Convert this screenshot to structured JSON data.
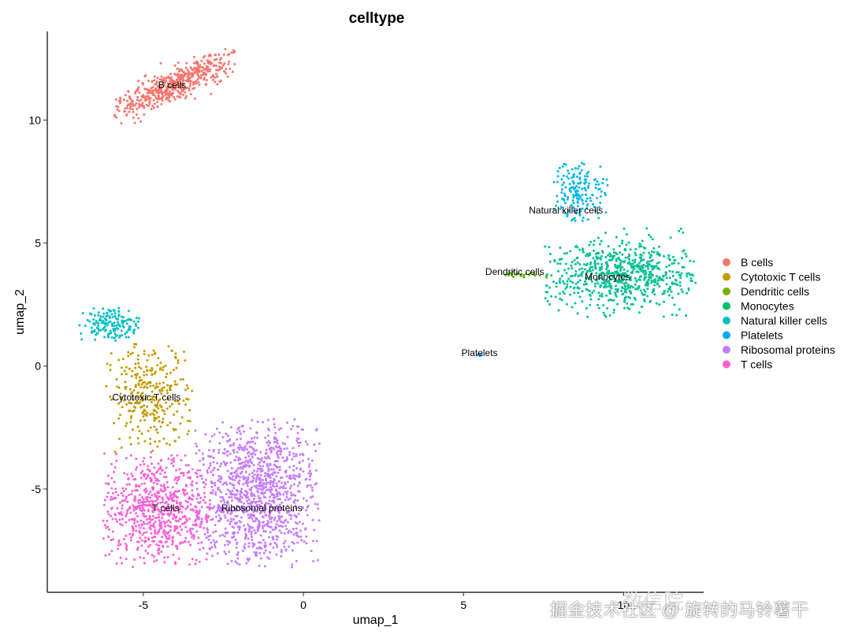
{
  "chart_data": {
    "type": "scatter",
    "title": "celltype",
    "xlabel": "umap_1",
    "ylabel": "umap_2",
    "xlim": [
      -8.0,
      12.5
    ],
    "ylim": [
      -9.2,
      13.6
    ],
    "x_ticks": [
      -5,
      0,
      5,
      10
    ],
    "y_ticks": [
      -5,
      0,
      5,
      10
    ],
    "x_tick_labels": [
      "-5",
      "0",
      "5",
      "10"
    ],
    "y_tick_labels": [
      "-5",
      "0",
      "5",
      "10"
    ],
    "grid": false,
    "legend_position": "right",
    "series": [
      {
        "name": "B cells",
        "color": "#F8766D",
        "label_x": -4.1,
        "label_y": 11.3,
        "point_count": 520,
        "centroid": [
          -4.1,
          11.4
        ],
        "extent": {
          "x": [
            -5.9,
            -2.1
          ],
          "y": [
            10.3,
            12.6
          ]
        }
      },
      {
        "name": "Cytotoxic T cells",
        "color": "#C49A00",
        "label_x": -4.9,
        "label_y": -1.4,
        "point_count": 300,
        "centroid": [
          -4.9,
          -1.6
        ],
        "extent": {
          "x": [
            -6.2,
            -3.4
          ],
          "y": [
            -3.6,
            1.0
          ]
        }
      },
      {
        "name": "Dendritic cells",
        "color": "#53B400",
        "label_x": 6.6,
        "label_y": 3.7,
        "point_count": 25,
        "centroid": [
          6.7,
          3.7
        ],
        "extent": {
          "x": [
            6.0,
            7.6
          ],
          "y": [
            3.5,
            3.9
          ]
        }
      },
      {
        "name": "Monocytes",
        "color": "#00C094",
        "label_x": 9.5,
        "label_y": 3.5,
        "point_count": 700,
        "centroid": [
          9.3,
          3.5
        ],
        "extent": {
          "x": [
            7.4,
            12.3
          ],
          "y": [
            2.1,
            5.4
          ]
        }
      },
      {
        "name": "Natural killer cells",
        "color": "#00B6EB",
        "legend_color": "#00B6EB",
        "label_x": 8.2,
        "label_y": 6.2,
        "point_count": 170,
        "centroid": [
          8.4,
          7.2
        ],
        "extent": {
          "x": [
            7.8,
            9.5
          ],
          "y": [
            5.9,
            8.4
          ]
        }
      },
      {
        "name": "Platelets",
        "color": "#06A4FF",
        "label_x": 5.5,
        "label_y": 0.4,
        "point_count": 4,
        "centroid": [
          5.5,
          0.45
        ],
        "extent": {
          "x": [
            5.4,
            5.6
          ],
          "y": [
            0.4,
            0.5
          ]
        }
      },
      {
        "name": "Ribosomal proteins",
        "color": "#C77CFF",
        "label_x": -1.3,
        "label_y": -5.9,
        "point_count": 1100,
        "centroid": [
          -1.2,
          -5.7
        ],
        "extent": {
          "x": [
            -3.5,
            0.5
          ],
          "y": [
            -8.2,
            -2.1
          ]
        }
      },
      {
        "name": "T cells",
        "color": "#FB61D7",
        "label_x": -4.3,
        "label_y": -5.9,
        "point_count": 700,
        "centroid": [
          -4.4,
          -5.9
        ],
        "extent": {
          "x": [
            -6.3,
            -2.8
          ],
          "y": [
            -8.2,
            -3.5
          ]
        }
      }
    ],
    "nk_cluster_left": {
      "name": "Natural killer cells",
      "color": "#00BFC4",
      "point_count": 160,
      "centroid": [
        -6.2,
        1.75
      ],
      "extent": {
        "x": [
          -7.0,
          -5.1
        ],
        "y": [
          1.0,
          2.4
        ]
      }
    }
  },
  "legend": {
    "items": [
      {
        "label": "B cells",
        "color": "#F8766D"
      },
      {
        "label": "Cytotoxic T cells",
        "color": "#C49A00"
      },
      {
        "label": "Dendritic cells",
        "color": "#7CAE00"
      },
      {
        "label": "Monocytes",
        "color": "#00BE67"
      },
      {
        "label": "Natural killer cells",
        "color": "#00BFC4"
      },
      {
        "label": "Platelets",
        "color": "#00A9FF"
      },
      {
        "label": "Ribosomal proteins",
        "color": "#C77CFF"
      },
      {
        "label": "T cells",
        "color": "#FF61CC"
      }
    ]
  },
  "watermark": {
    "text": "掘金技术社区 @ 旋转的马铃薯干",
    "faint_text": "数信院"
  }
}
